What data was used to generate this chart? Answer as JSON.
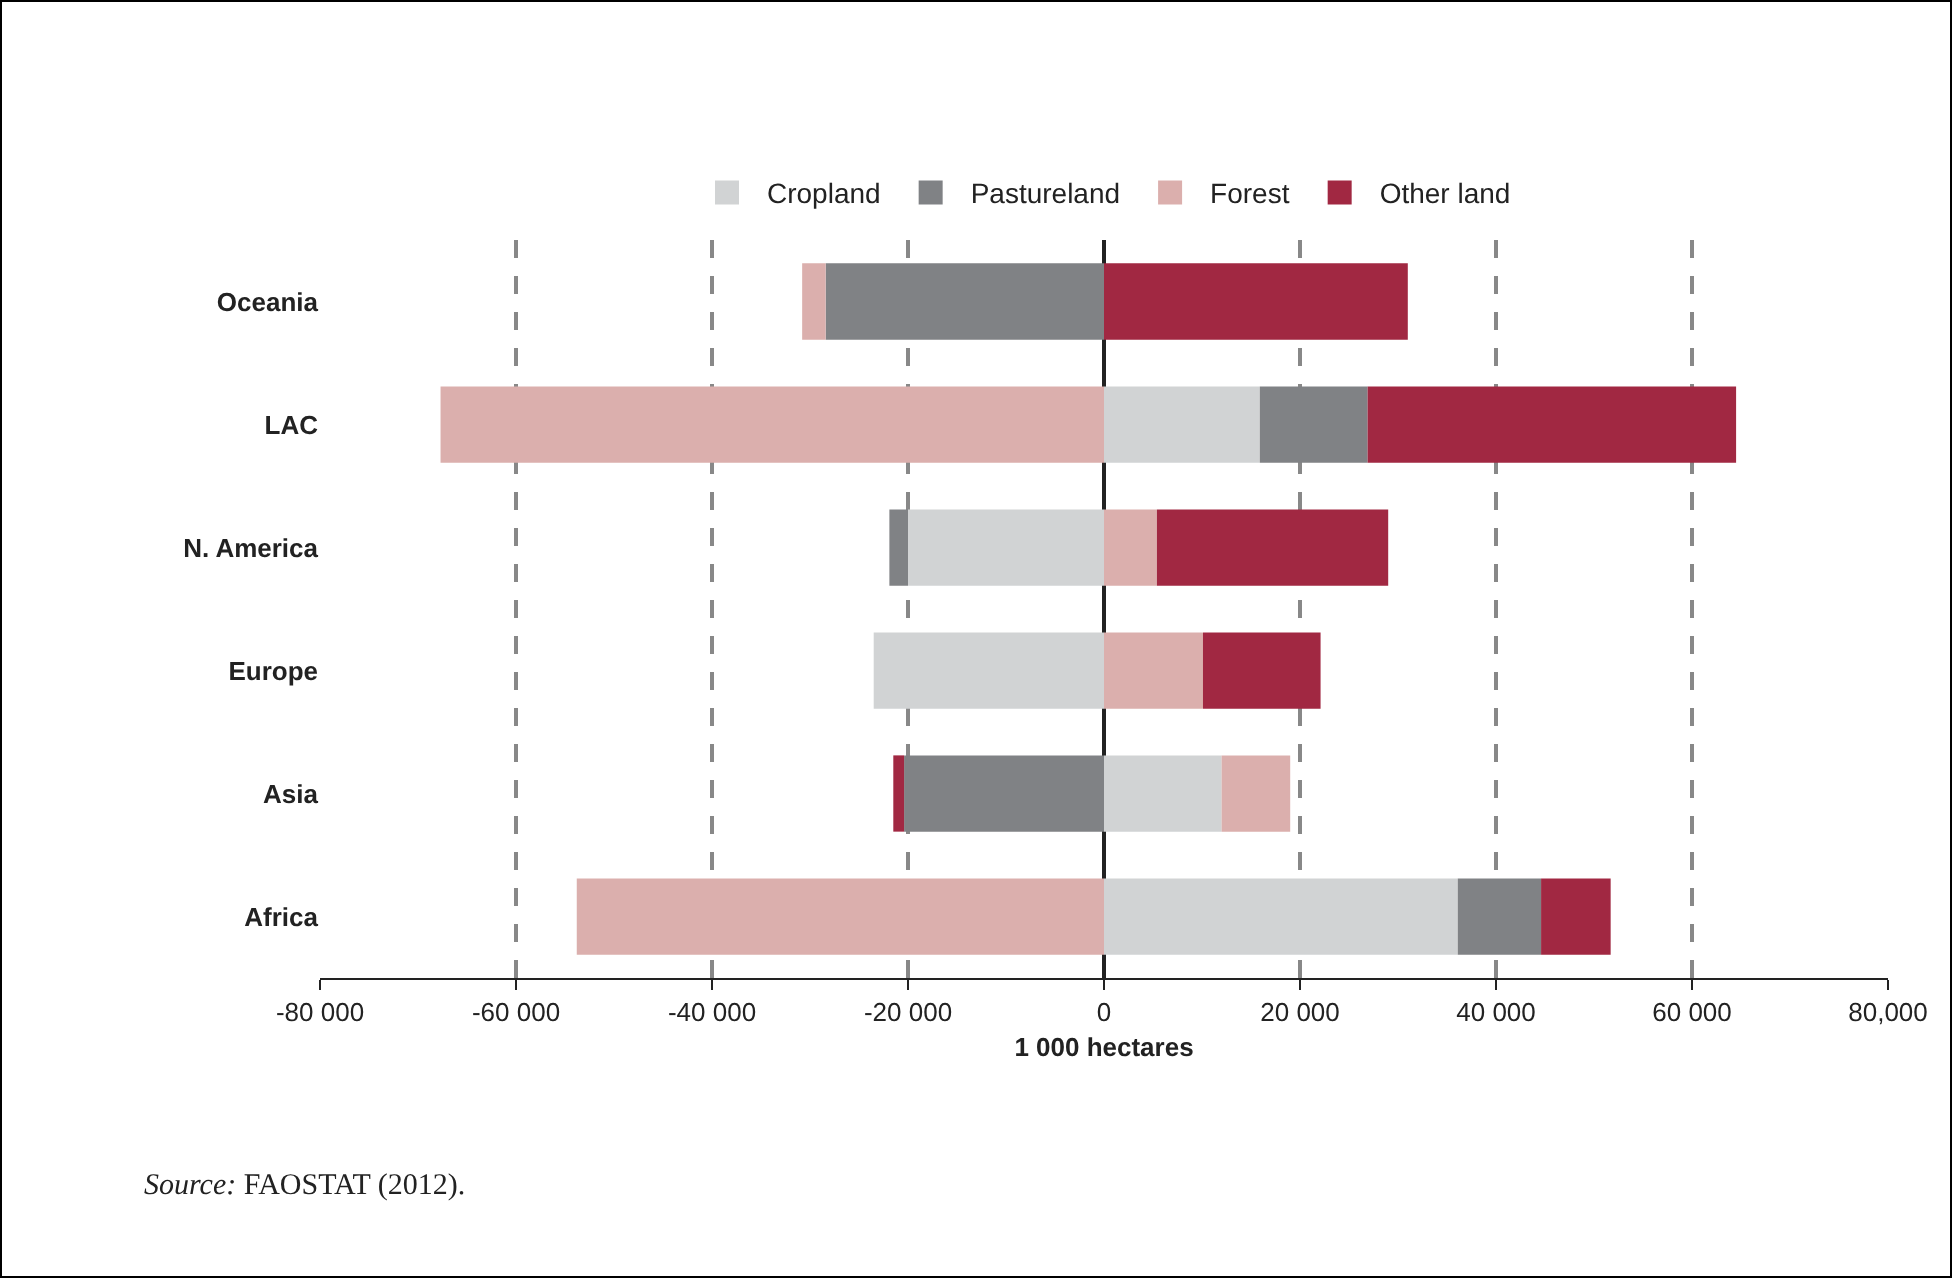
{
  "chart_data": {
    "type": "bar",
    "orientation": "horizontal",
    "stacked": true,
    "xlabel": "1 000 hectares",
    "categories": [
      "Oceania",
      "LAC",
      "N. America",
      "Europe",
      "Asia",
      "Africa"
    ],
    "series": [
      {
        "name": "Cropland",
        "color": "#d1d3d4",
        "values": [
          0,
          15900,
          -20000,
          -23500,
          12000,
          36100
        ]
      },
      {
        "name": "Pastureland",
        "color": "#808285",
        "values": [
          -28400,
          11000,
          -1900,
          0,
          -20400,
          8500
        ]
      },
      {
        "name": "Forest",
        "color": "#dbafad",
        "values": [
          -2400,
          -67700,
          5400,
          10100,
          7000,
          -53800
        ]
      },
      {
        "name": "Other land",
        "color": "#a12842",
        "values": [
          31000,
          37600,
          23600,
          12000,
          -1100,
          7100
        ]
      }
    ],
    "xlim": [
      -80000,
      80000
    ],
    "xticks": [
      {
        "value": -80000,
        "label": "-80 000"
      },
      {
        "value": -60000,
        "label": "-60 000"
      },
      {
        "value": -40000,
        "label": "-40 000"
      },
      {
        "value": -20000,
        "label": "-20 000"
      },
      0,
      {
        "value": 20000,
        "label": "20 000"
      },
      {
        "value": 40000,
        "label": "40 000"
      },
      {
        "value": 60000,
        "label": "60 000"
      },
      {
        "value": 80000,
        "label": "80,000"
      }
    ],
    "grid": "x",
    "legend": "top",
    "annotations": [
      "Source: FAOSTAT (2012)."
    ]
  }
}
